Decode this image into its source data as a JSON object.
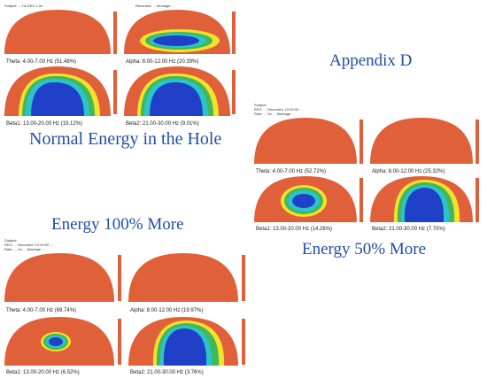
{
  "captions": {
    "appendix": "Appendix D",
    "normal": "Normal Energy in the Hole",
    "energy_100": "Energy 100% More",
    "energy_50": "Energy 50% More"
  },
  "colors": {
    "caption": "#1f4fa8",
    "base": "#e0603a",
    "yellow": "#f3e12a",
    "green": "#41b85a",
    "cyan": "#2cc4cc",
    "blue": "#2040c8"
  },
  "panels": {
    "normal": {
      "header": [
        "Subject: ... Hz  EEG  1.0s  ...",
        "Recorded: ... Montage ..."
      ],
      "maps": [
        {
          "label": "Theta: 4.00-7.00 Hz (51.48%)"
        },
        {
          "label": "Alpha: 8.00-12.00 Hz (20.39%)"
        },
        {
          "label": "Beta1: 13.00-20.00 Hz (19.12%)"
        },
        {
          "label": "Beta2: 21.00-30.00 Hz (9.01%)"
        }
      ]
    },
    "fifty": {
      "header": [
        "Subject:",
        "EEG: ...  Recorded: 12:00:00 ...",
        "Rate: ... Hz  ...  Montage ..."
      ],
      "maps": [
        {
          "label": "Theta: 4.00-7.00 Hz (52.72%)"
        },
        {
          "label": "Alpha: 8.00-12.00 Hz (25.32%)"
        },
        {
          "label": "Beta1: 13.00-20.00 Hz (14.26%)"
        },
        {
          "label": "Beta2: 21.00-30.00 Hz (7.70%)"
        }
      ]
    },
    "hundred": {
      "header": [
        "Subject:",
        "EEG: ...  Recorded: 12:00:00 ...",
        "Rate: ... Hz  ...  Montage ..."
      ],
      "maps": [
        {
          "label": "Theta: 4.00-7.00 Hz (69.74%)"
        },
        {
          "label": "Alpha: 8.00-12.00 Hz (19.97%)"
        },
        {
          "label": "Beta1: 13.00-20.00 Hz (6.52%)"
        },
        {
          "label": "Beta2: 21.00-30.00 Hz (3.76%)"
        }
      ]
    }
  }
}
